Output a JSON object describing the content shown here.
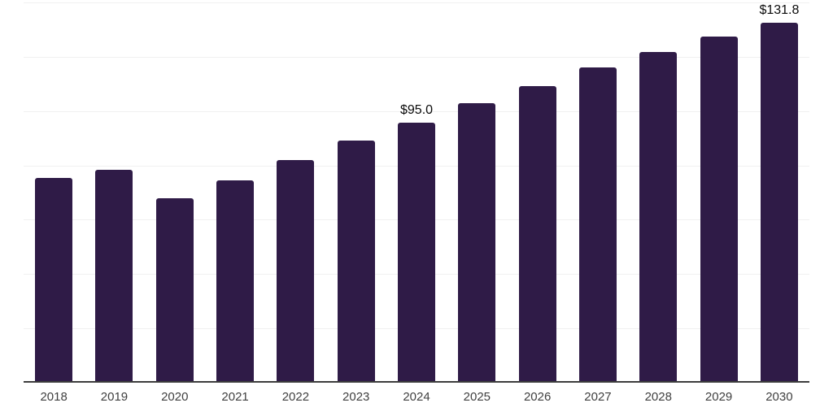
{
  "chart": {
    "background_color": "#ffffff",
    "bar_color": "#2f1b47",
    "grid_color": "#f0f0f0",
    "axis_color": "#3c3c3c",
    "tick_label_color": "#404040",
    "value_label_color": "#0a0a0a"
  },
  "chart_data": {
    "type": "bar",
    "title": "",
    "xlabel": "",
    "ylabel": "",
    "categories": [
      "2018",
      "2019",
      "2020",
      "2021",
      "2022",
      "2023",
      "2024",
      "2025",
      "2026",
      "2027",
      "2028",
      "2029",
      "2030"
    ],
    "values": [
      74.8,
      77.8,
      67.2,
      73.9,
      81.5,
      88.6,
      95.0,
      102.2,
      108.5,
      115.4,
      121.2,
      126.9,
      131.8
    ],
    "data_labels": [
      null,
      null,
      null,
      null,
      null,
      null,
      "$95.0",
      null,
      null,
      null,
      null,
      null,
      "$131.8"
    ],
    "ylim": [
      0,
      140
    ],
    "grid_step": 20,
    "grid": "horizontal",
    "y_tick_labels_visible": false,
    "legend": "none"
  }
}
